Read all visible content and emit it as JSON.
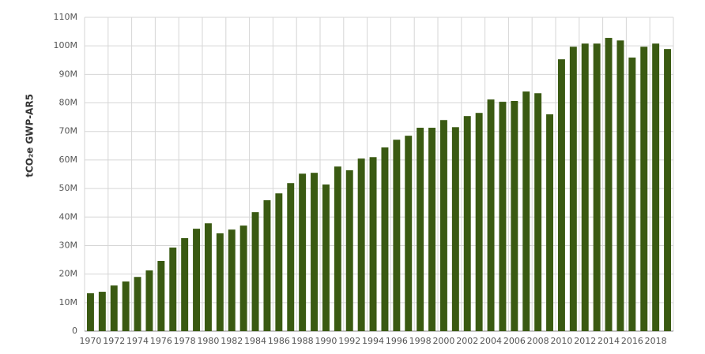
{
  "chart_data": {
    "type": "bar",
    "y_label": "tCO₂e GWP-AR5",
    "categories": [
      "1970",
      null,
      "1972",
      null,
      "1974",
      null,
      "1976",
      null,
      "1978",
      null,
      "1980",
      null,
      "1982",
      null,
      "1984",
      null,
      "1986",
      null,
      "1988",
      null,
      "1990",
      null,
      "1992",
      null,
      "1994",
      null,
      "1996",
      null,
      "1998",
      null,
      "2000",
      null,
      "2002",
      null,
      "2004",
      null,
      "2006",
      null,
      "2008",
      null,
      "2010",
      null,
      "2012",
      null,
      "2014",
      null,
      "2016",
      null,
      "2018",
      null
    ],
    "values": [
      13300000,
      13800000,
      16000000,
      17400000,
      19000000,
      21300000,
      24600000,
      29300000,
      32600000,
      35900000,
      37800000,
      34300000,
      35600000,
      37000000,
      41700000,
      45900000,
      48300000,
      51900000,
      55200000,
      55500000,
      51400000,
      57700000,
      56400000,
      60500000,
      61000000,
      64400000,
      67100000,
      68500000,
      71300000,
      71300000,
      74000000,
      71500000,
      75400000,
      76500000,
      81200000,
      80400000,
      80700000,
      84000000,
      83400000,
      76000000,
      95300000,
      99700000,
      100800000,
      100800000,
      102800000,
      101900000,
      95900000,
      99700000,
      100800000,
      98900000
    ],
    "color": "#3a5a12",
    "ylim": [
      0,
      110000000
    ],
    "yticks": [
      0,
      {
        "value": 10000000,
        "label": "10M"
      },
      {
        "value": 20000000,
        "label": "20M"
      },
      {
        "value": 30000000,
        "label": "30M"
      },
      {
        "value": 40000000,
        "label": "40M"
      },
      {
        "value": 50000000,
        "label": "50M"
      },
      {
        "value": 60000000,
        "label": "60M"
      },
      {
        "value": 70000000,
        "label": "70M"
      },
      {
        "value": 80000000,
        "label": "80M"
      },
      {
        "value": 90000000,
        "label": "90M"
      },
      {
        "value": 100000000,
        "label": "100M"
      },
      {
        "value": 110000000,
        "label": "110M"
      }
    ],
    "grid": true
  }
}
